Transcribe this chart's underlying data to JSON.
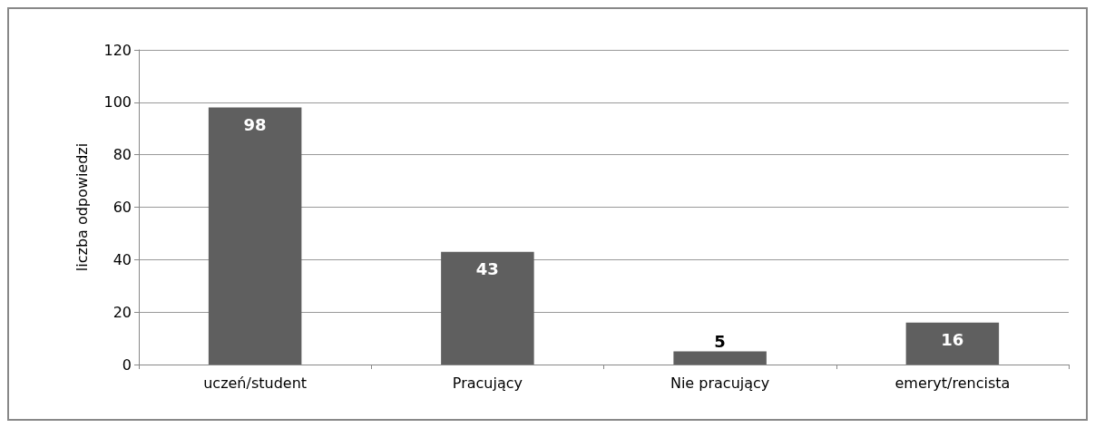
{
  "chart_data": {
    "type": "bar",
    "ylabel": "liczba odpowiedzi",
    "categories": [
      "uczeń/student",
      "Pracujący",
      "Nie pracujący",
      "emeryt/rencista"
    ],
    "values": [
      98,
      43,
      5,
      16
    ],
    "color": "#5f5f5f",
    "ylim": [
      0,
      120
    ],
    "yticks": [
      0,
      20,
      40,
      60,
      80,
      100,
      120
    ],
    "grid": "y",
    "data_labels": true
  }
}
